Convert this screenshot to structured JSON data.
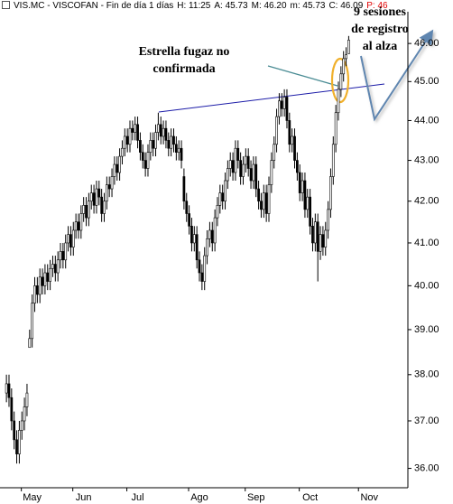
{
  "header": {
    "title": "VIS.MC - VISCOFAN - Fin de día 1 días",
    "fields": [
      "H: 11:25",
      "A: 45.73",
      "M: 46.20",
      "m: 45.73",
      "C: 46.09"
    ],
    "last": "P: 46"
  },
  "chart_data": {
    "type": "candlestick",
    "log_scale": true,
    "y_axis_side": "right",
    "grid": false,
    "up_color": "#ffffff",
    "down_color": "#000000",
    "edge_color": "#000000",
    "ylim": [
      35.6,
      46.85
    ],
    "yticks": [
      {
        "value": 36,
        "label": "36.00"
      },
      {
        "value": 37,
        "label": "37.00"
      },
      {
        "value": 38,
        "label": "38.00"
      },
      {
        "value": 39,
        "label": "39.00"
      },
      {
        "value": 40,
        "label": "40.00"
      },
      {
        "value": 41,
        "label": "41.00"
      },
      {
        "value": 42,
        "label": "42.00"
      },
      {
        "value": 43,
        "label": "43.00"
      },
      {
        "value": 44,
        "label": "44.00"
      },
      {
        "value": 45,
        "label": "45.00"
      },
      {
        "value": 46,
        "label": "46.00"
      }
    ],
    "xlim": [
      -2.5,
      156
    ],
    "xticks": [
      {
        "value": 10,
        "label": "May"
      },
      {
        "value": 30,
        "label": "Jun"
      },
      {
        "value": 51,
        "label": "Jul"
      },
      {
        "value": 75,
        "label": "Ago"
      },
      {
        "value": 97,
        "label": "Sep"
      },
      {
        "value": 118,
        "label": "Oct"
      },
      {
        "value": 141,
        "label": "Nov"
      }
    ],
    "annotations": [
      {
        "text": [
          "Estrella fugaz no",
          "confirmada"
        ]
      },
      {
        "text": [
          "9 sesiones",
          "de registro",
          "al alza"
        ]
      }
    ],
    "ohlc": [
      [
        37.6,
        38.0,
        37.4,
        37.8
      ],
      [
        37.8,
        38.0,
        37.3,
        37.5
      ],
      [
        37.5,
        37.7,
        36.8,
        37.0
      ],
      [
        37.0,
        37.2,
        36.4,
        36.6
      ],
      [
        36.6,
        36.8,
        36.1,
        36.3
      ],
      [
        36.3,
        37.0,
        36.1,
        36.8
      ],
      [
        36.8,
        37.2,
        36.6,
        37.0
      ],
      [
        37.0,
        37.5,
        36.8,
        37.3
      ],
      [
        37.3,
        37.8,
        37.1,
        37.6
      ],
      [
        38.6,
        39.0,
        38.6,
        38.8
      ],
      [
        38.8,
        39.8,
        38.6,
        39.6
      ],
      [
        39.6,
        40.2,
        39.4,
        40.0
      ],
      [
        40.0,
        40.2,
        39.6,
        39.8
      ],
      [
        39.8,
        40.4,
        39.6,
        40.2
      ],
      [
        40.2,
        40.4,
        39.8,
        40.0
      ],
      [
        40.0,
        40.5,
        39.8,
        40.3
      ],
      [
        40.3,
        40.5,
        39.9,
        40.1
      ],
      [
        40.1,
        40.6,
        39.9,
        40.4
      ],
      [
        40.4,
        40.7,
        40.2,
        40.5
      ],
      [
        40.5,
        40.7,
        40.1,
        40.3
      ],
      [
        40.3,
        40.8,
        40.1,
        40.6
      ],
      [
        40.6,
        41.0,
        40.4,
        40.8
      ],
      [
        40.8,
        41.0,
        40.4,
        40.6
      ],
      [
        40.6,
        41.2,
        40.4,
        41.0
      ],
      [
        41.0,
        41.4,
        40.8,
        41.2
      ],
      [
        41.2,
        41.4,
        40.7,
        40.9
      ],
      [
        40.9,
        41.5,
        40.7,
        41.3
      ],
      [
        41.3,
        41.7,
        41.1,
        41.5
      ],
      [
        41.5,
        41.7,
        41.1,
        41.3
      ],
      [
        41.3,
        41.9,
        41.1,
        41.7
      ],
      [
        41.7,
        42.1,
        41.5,
        41.9
      ],
      [
        41.9,
        42.1,
        41.4,
        41.6
      ],
      [
        41.6,
        42.2,
        41.4,
        42.0
      ],
      [
        42.0,
        42.4,
        41.8,
        42.2
      ],
      [
        42.2,
        42.4,
        41.7,
        41.9
      ],
      [
        41.9,
        42.5,
        41.7,
        42.3
      ],
      [
        42.3,
        42.5,
        41.9,
        42.1
      ],
      [
        42.1,
        42.3,
        41.5,
        41.7
      ],
      [
        41.7,
        42.2,
        41.5,
        42.0
      ],
      [
        42.0,
        42.6,
        41.8,
        42.4
      ],
      [
        42.4,
        42.6,
        42.1,
        42.3
      ],
      [
        42.3,
        42.8,
        42.1,
        42.6
      ],
      [
        42.6,
        43.1,
        42.4,
        42.9
      ],
      [
        42.9,
        43.1,
        42.5,
        42.7
      ],
      [
        42.7,
        43.3,
        42.5,
        43.1
      ],
      [
        43.1,
        43.5,
        42.9,
        43.3
      ],
      [
        43.3,
        43.8,
        43.1,
        43.6
      ],
      [
        43.6,
        43.8,
        43.2,
        43.4
      ],
      [
        43.4,
        44.0,
        43.2,
        43.8
      ],
      [
        43.8,
        44.0,
        43.5,
        43.7
      ],
      [
        43.7,
        44.1,
        43.5,
        43.9
      ],
      [
        43.9,
        44.1,
        43.3,
        43.5
      ],
      [
        43.5,
        43.7,
        43.0,
        43.2
      ],
      [
        43.2,
        43.4,
        42.8,
        43.0
      ],
      [
        43.0,
        43.2,
        42.6,
        42.8
      ],
      [
        42.8,
        43.4,
        42.6,
        43.2
      ],
      [
        43.2,
        43.7,
        43.0,
        43.5
      ],
      [
        43.5,
        43.7,
        43.1,
        43.3
      ],
      [
        43.3,
        43.9,
        43.1,
        43.7
      ],
      [
        43.7,
        44.2,
        43.5,
        43.9
      ],
      [
        43.9,
        44.1,
        43.4,
        43.6
      ],
      [
        43.6,
        44.0,
        43.4,
        43.8
      ],
      [
        43.8,
        44.0,
        43.3,
        43.5
      ],
      [
        43.5,
        43.7,
        43.1,
        43.3
      ],
      [
        43.3,
        43.8,
        43.1,
        43.6
      ],
      [
        43.6,
        43.8,
        43.2,
        43.4
      ],
      [
        43.4,
        43.6,
        43.0,
        43.2
      ],
      [
        43.2,
        43.5,
        43.0,
        43.3
      ],
      [
        43.3,
        43.5,
        42.8,
        43.0
      ],
      [
        42.6,
        42.8,
        41.8,
        42.0
      ],
      [
        42.0,
        42.2,
        41.5,
        41.7
      ],
      [
        41.7,
        41.9,
        41.2,
        41.4
      ],
      [
        41.4,
        41.6,
        40.8,
        41.0
      ],
      [
        41.0,
        41.4,
        40.8,
        41.2
      ],
      [
        41.2,
        41.4,
        40.4,
        40.6
      ],
      [
        40.6,
        40.8,
        40.1,
        40.3
      ],
      [
        40.3,
        40.5,
        39.9,
        40.1
      ],
      [
        40.1,
        40.9,
        39.9,
        40.7
      ],
      [
        40.7,
        41.3,
        40.5,
        41.1
      ],
      [
        41.1,
        41.5,
        40.9,
        41.3
      ],
      [
        41.3,
        41.5,
        40.8,
        41.0
      ],
      [
        41.0,
        41.8,
        40.8,
        41.6
      ],
      [
        41.6,
        42.1,
        41.4,
        41.9
      ],
      [
        41.9,
        42.4,
        41.7,
        42.2
      ],
      [
        42.2,
        42.4,
        41.8,
        42.0
      ],
      [
        42.0,
        42.7,
        41.8,
        42.5
      ],
      [
        42.5,
        43.0,
        42.3,
        42.8
      ],
      [
        42.8,
        43.2,
        42.6,
        43.0
      ],
      [
        43.0,
        43.2,
        42.5,
        42.7
      ],
      [
        42.7,
        43.5,
        42.5,
        43.3
      ],
      [
        43.3,
        43.5,
        42.8,
        43.0
      ],
      [
        43.0,
        43.2,
        42.4,
        42.6
      ],
      [
        42.6,
        43.1,
        42.4,
        42.9
      ],
      [
        42.9,
        43.3,
        42.7,
        43.1
      ],
      [
        43.1,
        43.3,
        42.6,
        42.8
      ],
      [
        42.8,
        43.0,
        42.3,
        42.5
      ],
      [
        42.5,
        43.1,
        42.3,
        42.9
      ],
      [
        42.9,
        43.1,
        42.1,
        42.3
      ],
      [
        42.3,
        42.5,
        41.8,
        42.0
      ],
      [
        42.0,
        42.2,
        41.6,
        41.8
      ],
      [
        41.8,
        42.4,
        41.6,
        42.2
      ],
      [
        42.2,
        42.4,
        41.5,
        41.7
      ],
      [
        41.7,
        42.6,
        41.5,
        42.4
      ],
      [
        42.4,
        43.2,
        42.2,
        43.0
      ],
      [
        43.0,
        43.6,
        42.8,
        43.4
      ],
      [
        43.4,
        44.3,
        43.2,
        44.1
      ],
      [
        44.1,
        44.7,
        43.9,
        44.5
      ],
      [
        44.5,
        44.7,
        44.1,
        44.3
      ],
      [
        44.3,
        44.8,
        44.1,
        44.6
      ],
      [
        44.6,
        44.8,
        43.8,
        44.0
      ],
      [
        44.0,
        44.2,
        43.2,
        43.4
      ],
      [
        43.4,
        43.8,
        43.2,
        43.6
      ],
      [
        43.6,
        43.8,
        42.8,
        43.0
      ],
      [
        43.0,
        43.2,
        42.5,
        42.7
      ],
      [
        42.7,
        42.9,
        42.0,
        42.2
      ],
      [
        42.2,
        42.7,
        42.0,
        42.5
      ],
      [
        42.5,
        42.7,
        41.6,
        41.8
      ],
      [
        41.8,
        42.3,
        41.6,
        42.1
      ],
      [
        42.1,
        42.3,
        41.2,
        41.4
      ],
      [
        41.4,
        41.6,
        40.8,
        41.0
      ],
      [
        41.0,
        41.7,
        40.8,
        41.5
      ],
      [
        41.5,
        41.7,
        40.1,
        40.8
      ],
      [
        40.8,
        41.4,
        40.6,
        41.2
      ],
      [
        41.2,
        41.4,
        40.7,
        40.9
      ],
      [
        40.9,
        41.5,
        40.7,
        41.3
      ],
      [
        41.3,
        42.0,
        41.1,
        41.8
      ],
      [
        41.8,
        42.8,
        41.6,
        42.6
      ],
      [
        42.6,
        43.6,
        42.4,
        43.4
      ],
      [
        43.4,
        44.4,
        43.2,
        44.2
      ],
      [
        44.2,
        45.0,
        44.0,
        44.8
      ],
      [
        44.8,
        45.4,
        44.6,
        45.2
      ],
      [
        45.2,
        45.8,
        45.0,
        45.6
      ],
      [
        45.6,
        45.9,
        45.4,
        45.7
      ],
      [
        45.73,
        46.2,
        45.73,
        46.09
      ]
    ]
  }
}
